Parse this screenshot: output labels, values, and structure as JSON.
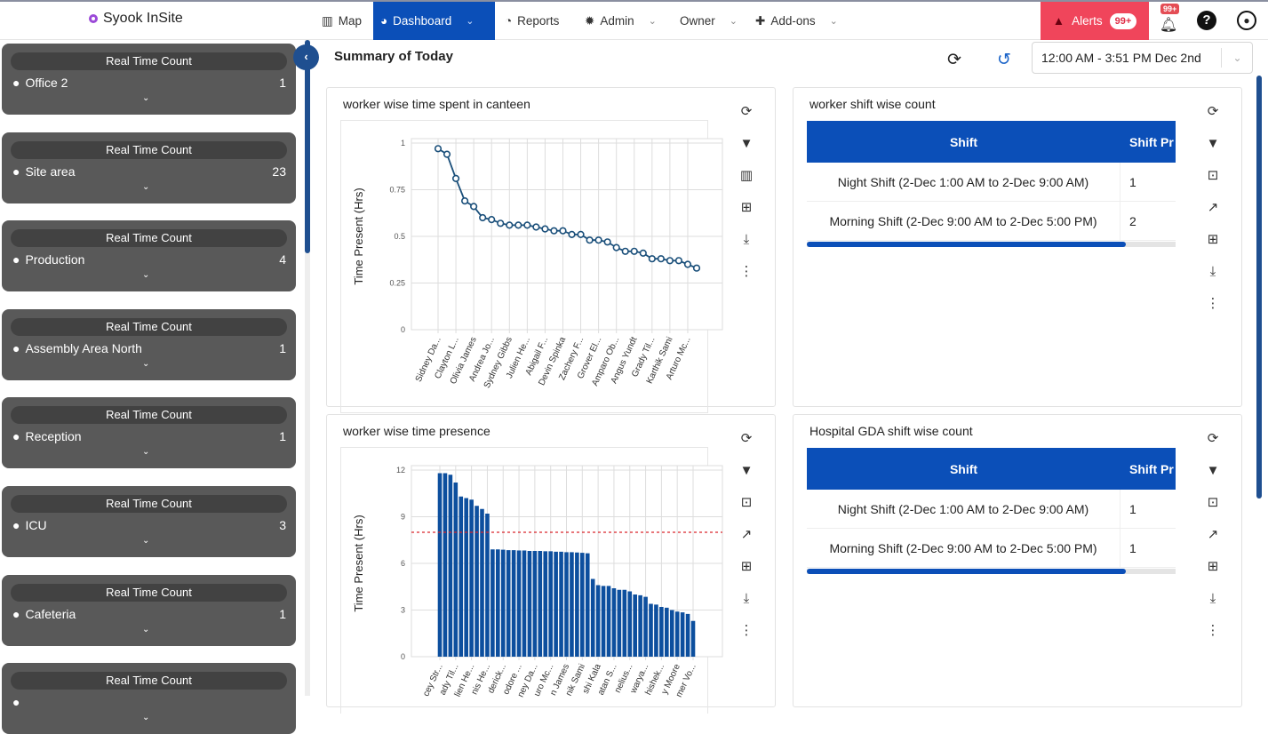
{
  "app": {
    "name": "Syook InSite"
  },
  "nav": [
    {
      "label": "Map",
      "icon": "map-icon"
    },
    {
      "label": "Dashboard",
      "icon": "gauge-icon",
      "active": true,
      "dropdown": true
    },
    {
      "label": "Reports",
      "icon": "pie-chart-icon"
    },
    {
      "label": "Admin",
      "icon": "gear-icon",
      "dropdown": true
    },
    {
      "label": "Owner",
      "dropdown": true
    },
    {
      "label": "Add-ons",
      "icon": "puzzle-icon",
      "dropdown": true
    }
  ],
  "alerts": {
    "label": "Alerts",
    "count": "99+"
  },
  "notifications": {
    "count": "99+"
  },
  "sidebar": {
    "cards": [
      {
        "title": "Real Time Count",
        "location": "Office 2",
        "count": "1"
      },
      {
        "title": "Real Time Count",
        "location": "Site area",
        "count": "23"
      },
      {
        "title": "Real Time Count",
        "location": "Production",
        "count": "4"
      },
      {
        "title": "Real Time Count",
        "location": "Assembly Area North",
        "count": "1"
      },
      {
        "title": "Real Time Count",
        "location": "Reception",
        "count": "1"
      },
      {
        "title": "Real Time Count",
        "location": "ICU",
        "count": "3"
      },
      {
        "title": "Real Time Count",
        "location": "Cafeteria",
        "count": "1"
      },
      {
        "title": "Real Time Count",
        "location": "",
        "count": ""
      }
    ]
  },
  "main": {
    "title": "Summary of Today",
    "date_range": "12:00 AM - 3:51 PM Dec 2nd"
  },
  "widgets": {
    "canteen": {
      "title": "worker wise time spent in canteen"
    },
    "presence": {
      "title": "worker wise time presence"
    },
    "shift": {
      "title": "worker shift wise count",
      "headers": [
        "Shift",
        "Shift Pr"
      ],
      "rows": [
        [
          "Night Shift (2-Dec 1:00 AM to 2-Dec 9:00 AM)",
          "1"
        ],
        [
          "Morning Shift (2-Dec 9:00 AM to 2-Dec 5:00 PM)",
          "2"
        ]
      ]
    },
    "gda": {
      "title": "Hospital GDA shift wise count",
      "headers": [
        "Shift",
        "Shift Pr"
      ],
      "rows": [
        [
          "Night Shift (2-Dec 1:00 AM to 2-Dec 9:00 AM)",
          "1"
        ],
        [
          "Morning Shift (2-Dec 9:00 AM to 2-Dec 5:00 PM)",
          "1"
        ]
      ]
    }
  },
  "colors": {
    "primary": "#0b4fb8",
    "alert": "#f0455b",
    "sidebar_card": "#595959",
    "line": "#1a4f7a",
    "bar": "#0d4f9e",
    "threshold": "#d9262c"
  },
  "chart_data": [
    {
      "type": "line",
      "ylabel": "Time Present (Hrs)",
      "ylim": [
        0,
        1
      ],
      "yticks": [
        "0",
        "0.25",
        "0.5",
        "0.75",
        "1"
      ],
      "grid": true,
      "tick_labels": [
        "Sidney Da...",
        "Clayton L...",
        "Olivia James",
        "Andrea Jo...",
        "Sydney Gibbs",
        "Julien He...",
        "Abigail F...",
        "Devin Spinka",
        "Zachery F...",
        "Grover El...",
        "Amparo Ob...",
        "Angus Yundt",
        "Grady Til...",
        "Karthik Sami",
        "Arturo Mc..."
      ],
      "values": [
        0.97,
        0.94,
        0.81,
        0.69,
        0.66,
        0.6,
        0.59,
        0.57,
        0.56,
        0.56,
        0.56,
        0.55,
        0.54,
        0.53,
        0.53,
        0.51,
        0.51,
        0.48,
        0.48,
        0.47,
        0.44,
        0.42,
        0.42,
        0.41,
        0.38,
        0.38,
        0.37,
        0.37,
        0.35,
        0.33
      ]
    },
    {
      "type": "bar",
      "ylabel": "Time Present (Hrs)",
      "ylim": [
        0,
        12
      ],
      "yticks": [
        "0",
        "3",
        "6",
        "9",
        "12"
      ],
      "grid": true,
      "threshold": 8,
      "tick_labels": [
        "cey Str...",
        "ady Til...",
        "lien He...",
        "nis He...",
        "derick...",
        "odore ...",
        "ney Da...",
        "uro Mc...",
        "n James",
        "nik Sami",
        "shi Kala",
        "atan S...",
        "nelius...",
        "warya...",
        "hishek...",
        "y Moore",
        "mer Vo..."
      ],
      "values": [
        11.8,
        11.8,
        11.7,
        11.2,
        10.3,
        10.2,
        10.1,
        9.7,
        9.5,
        9.2,
        6.9,
        6.9,
        6.88,
        6.85,
        6.85,
        6.83,
        6.83,
        6.8,
        6.8,
        6.8,
        6.78,
        6.78,
        6.75,
        6.75,
        6.72,
        6.72,
        6.7,
        6.68,
        6.65,
        5.0,
        4.6,
        4.55,
        4.55,
        4.4,
        4.3,
        4.3,
        4.2,
        4.0,
        3.95,
        3.85,
        3.4,
        3.35,
        3.2,
        3.15,
        3.0,
        2.9,
        2.85,
        2.75,
        2.3
      ]
    }
  ]
}
